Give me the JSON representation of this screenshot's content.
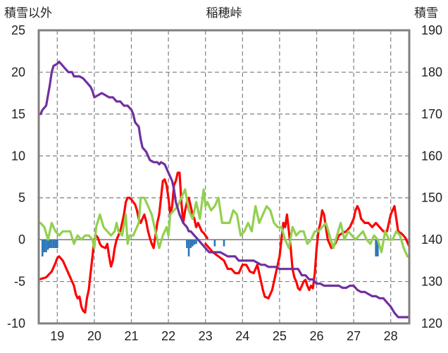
{
  "chart_data": {
    "type": "line",
    "title": "稲穂峠",
    "y_left_label": "積雪以外",
    "y_right_label": "積雪",
    "y_left_range": [
      -10,
      25
    ],
    "y_left_ticks": [
      25,
      20,
      15,
      10,
      5,
      0,
      -5,
      -10
    ],
    "y_right_range": [
      120,
      190
    ],
    "y_right_ticks": [
      190,
      180,
      170,
      160,
      150,
      140,
      130,
      120
    ],
    "x_range": [
      18.5,
      28.5
    ],
    "x_ticks": [
      "19",
      "20",
      "21",
      "22",
      "23",
      "24",
      "25",
      "26",
      "27",
      "28"
    ],
    "grid": true,
    "colors": {
      "temperature": "#ff0000",
      "green": "#92d050",
      "snow_depth": "#7030a0",
      "precip": "#2e75b6",
      "grid": "#7f7f7f",
      "frame": "#808080"
    },
    "series": [
      {
        "axis": "left",
        "color": "#ff0000",
        "x": [
          18.55,
          18.7,
          18.85,
          18.95,
          19.0,
          19.05,
          19.15,
          19.25,
          19.35,
          19.45,
          19.5,
          19.55,
          19.6,
          19.65,
          19.7,
          19.75,
          19.8,
          19.85,
          19.9,
          19.95,
          20.0,
          20.05,
          20.1,
          20.15,
          20.2,
          20.3,
          20.35,
          20.4,
          20.45,
          20.5,
          20.55,
          20.6,
          20.65,
          20.7,
          20.75,
          20.8,
          20.85,
          20.9,
          20.95,
          21.0,
          21.05,
          21.1,
          21.15,
          21.2,
          21.25,
          21.3,
          21.35,
          21.4,
          21.45,
          21.5,
          21.55,
          21.6,
          21.65,
          21.7,
          21.75,
          21.8,
          21.85,
          21.9,
          21.95,
          22.0,
          22.05,
          22.1,
          22.15,
          22.2,
          22.25,
          22.3,
          22.35,
          22.4,
          22.45,
          22.5,
          22.55,
          22.6,
          22.65,
          22.7,
          22.75,
          22.8,
          22.85,
          22.9,
          22.95,
          23.0,
          23.05
        ],
        "y": [
          -4.7,
          -4.5,
          -3.8,
          -2.8,
          -2.2,
          -2.0,
          -2.5,
          -3.5,
          -4.5,
          -5.5,
          -6.5,
          -7.0,
          -6.8,
          -8.0,
          -8.5,
          -8.7,
          -7.0,
          -6.0,
          -4.0,
          -2.0,
          0.0,
          0.5,
          0.2,
          -0.5,
          -0.8,
          -1.0,
          -0.5,
          -2.0,
          -3.2,
          -2.5,
          -1.0,
          0.0,
          0.5,
          1.0,
          2.0,
          3.0,
          4.5,
          5.0,
          5.0,
          4.8,
          4.5,
          4.2,
          3.5,
          2.5,
          2.0,
          2.5,
          3.0,
          2.2,
          1.0,
          0.2,
          -0.5,
          -1.0,
          0.5,
          2.0,
          3.0,
          5.0,
          7.0,
          7.2,
          6.5,
          5.0,
          3.0,
          4.0,
          6.5,
          7.0,
          8.0,
          8.0,
          4.5,
          2.0,
          3.5,
          4.5,
          5.0,
          4.0,
          3.0,
          2.5,
          1.5,
          2.0,
          1.5,
          1.0,
          0.8,
          0.5,
          0.2
        ]
      },
      {
        "axis": "left",
        "color": "#ff0000",
        "x": [
          23.0,
          23.2,
          23.35,
          23.5,
          23.6,
          23.7,
          23.8,
          23.9,
          24.0,
          24.1,
          24.2,
          24.3,
          24.4,
          24.5,
          24.55,
          24.6,
          24.7,
          24.8,
          24.9,
          25.0,
          25.05,
          25.1,
          25.15,
          25.2,
          25.25,
          25.3,
          25.35,
          25.4,
          25.45,
          25.5,
          25.55,
          25.6,
          25.65,
          25.7,
          25.75,
          25.8,
          25.85,
          25.9,
          25.95,
          26.0,
          26.05,
          26.1,
          26.15,
          26.2,
          26.3,
          26.4,
          26.5,
          26.6,
          26.7,
          26.8,
          26.9,
          27.0,
          27.05,
          27.1,
          27.15,
          27.2,
          27.3,
          27.4,
          27.5,
          27.6,
          27.7,
          27.8,
          27.9,
          28.0,
          28.05,
          28.1,
          28.15,
          28.2,
          28.3,
          28.4,
          28.5
        ],
        "y": [
          -0.5,
          -1.5,
          -2.0,
          -2.5,
          -3.5,
          -3.5,
          -4.0,
          -4.0,
          -3.0,
          -3.0,
          -3.8,
          -4.0,
          -3.0,
          -5.0,
          -6.0,
          -6.8,
          -7.0,
          -6.0,
          -4.0,
          -2.0,
          0.0,
          2.0,
          1.5,
          3.0,
          1.0,
          -1.0,
          -3.5,
          -4.5,
          -5.0,
          -5.8,
          -6.0,
          -5.5,
          -5.0,
          -4.8,
          -5.5,
          -6.0,
          -5.5,
          -5.8,
          -4.0,
          -1.0,
          1.0,
          2.0,
          3.5,
          3.0,
          0.0,
          -1.0,
          -0.5,
          0.5,
          0.8,
          1.0,
          1.5,
          2.5,
          3.5,
          4.0,
          3.5,
          2.5,
          2.0,
          2.0,
          1.5,
          2.0,
          1.5,
          1.0,
          1.0,
          3.0,
          3.5,
          4.0,
          2.5,
          1.0,
          0.7,
          0.2,
          -0.8
        ]
      },
      {
        "axis": "left",
        "color": "#92d050",
        "x": [
          18.55,
          18.65,
          18.75,
          18.85,
          18.95,
          19.05,
          19.15,
          19.25,
          19.35,
          19.45,
          19.55,
          19.65,
          19.75,
          19.85,
          19.95,
          20.0,
          20.05,
          20.15,
          20.25,
          20.35,
          20.45,
          20.55,
          20.6,
          20.65,
          20.75,
          20.85,
          20.9,
          20.95,
          21.05,
          21.15,
          21.2,
          21.25,
          21.35,
          21.45,
          21.55,
          21.65,
          21.75,
          21.85,
          21.95,
          22.0,
          22.05,
          22.15,
          22.25,
          22.35,
          22.45,
          22.55,
          22.65,
          22.75,
          22.85,
          22.95,
          23.0,
          23.05,
          23.15,
          23.25,
          23.35,
          23.45,
          23.55,
          23.65,
          23.75,
          23.85,
          23.95,
          24.05,
          24.15,
          24.25,
          24.35,
          24.45,
          24.55,
          24.65,
          24.75,
          24.85,
          24.95,
          25.05,
          25.15,
          25.25,
          25.35,
          25.45,
          25.55,
          25.65,
          25.75,
          25.85,
          25.95,
          26.05,
          26.15,
          26.25,
          26.35,
          26.45,
          26.55,
          26.65,
          26.75,
          26.85,
          26.95,
          27.05,
          27.15,
          27.25,
          27.35,
          27.45,
          27.55,
          27.65,
          27.75,
          27.85,
          27.95,
          28.05,
          28.15,
          28.25,
          28.35,
          28.45,
          28.5
        ],
        "y": [
          2.0,
          1.5,
          0.0,
          2.0,
          1.0,
          0.5,
          1.0,
          1.0,
          1.0,
          -0.5,
          0.5,
          0.0,
          0.5,
          0.5,
          0.0,
          -1.0,
          1.5,
          3.0,
          1.5,
          1.0,
          0.5,
          1.0,
          2.0,
          1.0,
          0.5,
          3.0,
          -0.5,
          0.5,
          0.5,
          1.5,
          2.0,
          5.0,
          5.0,
          4.0,
          3.0,
          1.0,
          -1.0,
          0.5,
          1.5,
          0.5,
          3.0,
          3.5,
          4.0,
          5.0,
          6.0,
          3.5,
          2.5,
          4.5,
          2.5,
          6.0,
          4.0,
          4.5,
          3.5,
          4.0,
          5.0,
          2.0,
          2.0,
          2.0,
          3.5,
          3.0,
          0.5,
          1.0,
          2.0,
          1.0,
          4.0,
          2.0,
          3.0,
          4.0,
          3.5,
          2.0,
          1.5,
          1.5,
          0.0,
          -1.0,
          1.5,
          0.5,
          1.0,
          1.0,
          -0.5,
          0.0,
          1.0,
          1.0,
          1.5,
          2.0,
          0.5,
          -1.0,
          0.5,
          2.0,
          0.0,
          1.0,
          0.5,
          0.0,
          0.5,
          1.0,
          0.0,
          -0.5,
          0.5,
          0.0,
          -1.5,
          1.0,
          0.0,
          0.0,
          1.0,
          0.5,
          -1.0,
          -2.0,
          -2.0
        ]
      },
      {
        "axis": "right",
        "color": "#7030a0",
        "x": [
          18.55,
          18.6,
          18.7,
          18.8,
          18.85,
          18.9,
          19.0,
          19.05,
          19.1,
          19.2,
          19.3,
          19.4,
          19.45,
          19.5,
          19.6,
          19.7,
          19.8,
          19.9,
          19.95,
          20.0,
          20.1,
          20.2,
          20.3,
          20.4,
          20.5,
          20.6,
          20.7,
          20.8,
          20.85,
          20.9,
          21.0,
          21.05,
          21.1,
          21.2,
          21.25,
          21.3,
          21.4,
          21.5,
          21.6,
          21.7,
          21.75,
          21.8,
          21.9,
          22.0,
          22.1,
          22.15,
          22.2,
          22.3,
          22.4,
          22.5,
          22.55,
          22.6,
          22.7,
          22.8,
          22.9,
          23.0,
          23.1,
          23.2,
          23.3,
          23.4,
          23.5,
          23.6,
          23.7,
          23.8,
          23.9,
          24.0,
          24.1,
          24.2,
          24.3,
          24.4,
          24.5,
          24.6,
          24.7,
          24.8,
          24.9,
          25.0,
          25.1,
          25.2,
          25.3,
          25.4,
          25.5,
          25.6,
          25.7,
          25.8,
          25.9,
          26.0,
          26.1,
          26.2,
          26.3,
          26.4,
          26.5,
          26.6,
          26.7,
          26.8,
          26.9,
          27.0,
          27.1,
          27.2,
          27.3,
          27.4,
          27.5,
          27.6,
          27.7,
          27.8,
          27.9,
          28.0,
          28.1,
          28.2,
          28.3,
          28.4,
          28.5
        ],
        "y": [
          170.0,
          171.0,
          172.0,
          177.0,
          180.0,
          181.5,
          182.0,
          182.5,
          182.0,
          181.0,
          180.0,
          180.0,
          179.0,
          179.0,
          179.0,
          178.5,
          177.5,
          176.5,
          175.5,
          174.0,
          174.5,
          175.0,
          174.5,
          174.0,
          174.0,
          173.0,
          173.0,
          172.0,
          172.0,
          172.0,
          171.0,
          170.0,
          168.0,
          167.0,
          164.0,
          162.0,
          161.0,
          159.0,
          158.5,
          158.5,
          158.0,
          158.5,
          158.0,
          156.0,
          154.0,
          152.0,
          149.0,
          146.0,
          144.0,
          143.0,
          142.0,
          142.0,
          141.0,
          140.0,
          139.0,
          138.0,
          137.0,
          137.0,
          137.0,
          137.0,
          136.5,
          136.0,
          136.0,
          136.0,
          135.0,
          135.0,
          135.0,
          135.0,
          135.0,
          134.5,
          134.0,
          134.0,
          133.5,
          133.5,
          133.5,
          133.0,
          133.0,
          133.0,
          133.0,
          133.0,
          133.0,
          131.5,
          131.5,
          130.5,
          130.5,
          129.5,
          129.5,
          129.0,
          129.0,
          129.0,
          129.0,
          129.0,
          128.5,
          128.5,
          129.0,
          129.0,
          128.0,
          127.5,
          127.5,
          127.0,
          126.5,
          126.5,
          126.0,
          126.0,
          125.0,
          124.0,
          122.5,
          121.5,
          121.5,
          121.5,
          121.5
        ]
      }
    ],
    "precip_bars": {
      "axis": "left",
      "color": "#2e75b6",
      "x": [
        18.6,
        18.65,
        18.7,
        18.75,
        18.8,
        18.85,
        18.9,
        18.95,
        19.0,
        22.5,
        22.55,
        22.6,
        22.65,
        22.7,
        22.75,
        23.25,
        23.5,
        27.6,
        27.65
      ],
      "bottom": [
        -2.0,
        -1.5,
        -1.5,
        -1.2,
        -1.0,
        -1.0,
        -1.0,
        -1.0,
        -1.0,
        -1.0,
        -2.0,
        -1.0,
        -0.8,
        -0.6,
        -0.5,
        -0.8,
        -0.8,
        -2.0,
        -2.0
      ]
    }
  }
}
